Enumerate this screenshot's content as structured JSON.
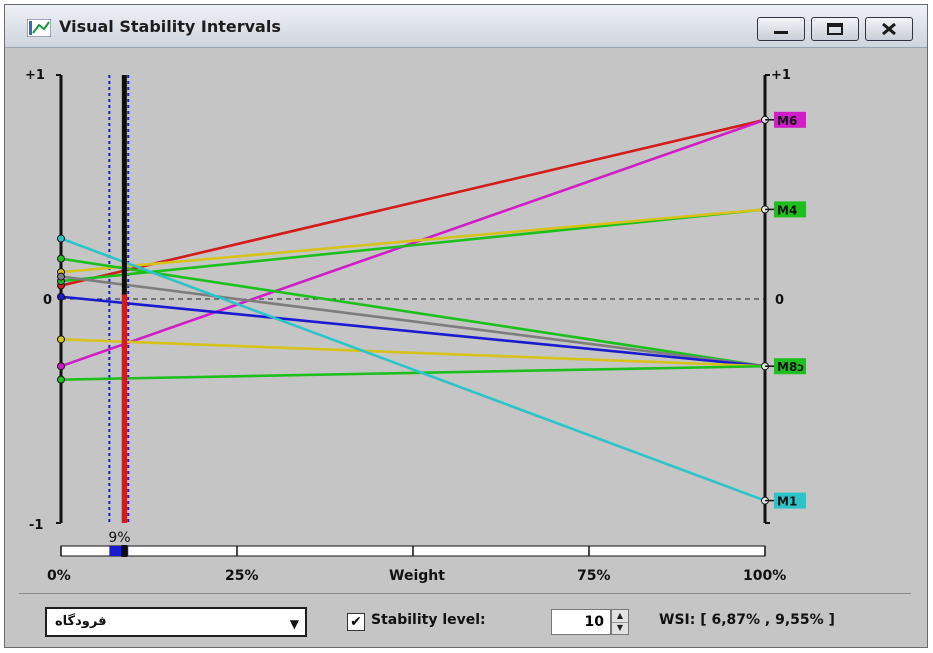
{
  "window": {
    "title": "Visual Stability Intervals",
    "buttons": {
      "minimize": "minimize-icon",
      "maximize": "maximize-icon",
      "close": "close-icon"
    }
  },
  "chart_data": {
    "type": "line",
    "title": "",
    "xlabel": "Weight",
    "x_axis": {
      "range": [
        0,
        100
      ],
      "ticks": [
        0,
        25,
        50,
        75,
        100
      ],
      "tick_labels": [
        "0%",
        "25%",
        "Weight",
        "75%",
        "100%"
      ]
    },
    "y_axis": {
      "range": [
        -1,
        1
      ],
      "left_labels": [
        "+1",
        "0",
        "-1"
      ],
      "right_labels": [
        "+1",
        "0"
      ]
    },
    "current_weight": {
      "value": 9,
      "label": "9%"
    },
    "stability_interval": [
      6.87,
      9.55
    ],
    "lines": [
      {
        "name": "",
        "color": "#d41a1a",
        "y0": 0.06,
        "y1": 0.8
      },
      {
        "name": "",
        "color": "#d01dc7",
        "y0": -0.3,
        "y1": 0.8
      },
      {
        "name": "",
        "color": "#1cbf1c",
        "y0": 0.08,
        "y1": 0.4
      },
      {
        "name": "",
        "color": "#d7c21a",
        "y0": 0.12,
        "y1": 0.4
      },
      {
        "name": "",
        "color": "#1cbf1c",
        "y0": 0.18,
        "y1": -0.3
      },
      {
        "name": "",
        "color": "#7d7d7d",
        "y0": 0.1,
        "y1": -0.3
      },
      {
        "name": "",
        "color": "#1a1ad0",
        "y0": 0.01,
        "y1": -0.3
      },
      {
        "name": "",
        "color": "#d7c21a",
        "y0": -0.18,
        "y1": -0.3
      },
      {
        "name": "",
        "color": "#1cbf1c",
        "y0": -0.36,
        "y1": -0.3
      },
      {
        "name": "",
        "color": "#2bc4c8",
        "y0": 0.27,
        "y1": -0.9
      }
    ],
    "right_endpoints": [
      {
        "label": "M6",
        "y": 0.8,
        "color": "#d01dc7"
      },
      {
        "label": "M4",
        "y": 0.4,
        "color": "#1cbf1c"
      },
      {
        "label": "M8כ",
        "y": -0.3,
        "color": "#1cbf1c"
      },
      {
        "label": "M1",
        "y": -0.9,
        "color": "#2bc4c8"
      }
    ]
  },
  "controls": {
    "dropdown_value": "فرودگاه",
    "stability_checked": true,
    "checkbox_mark": "✔",
    "stability_label": "Stability level:",
    "stability_value": "10",
    "wsi_text": "WSI: [ 6,87% , 9,55% ]"
  }
}
